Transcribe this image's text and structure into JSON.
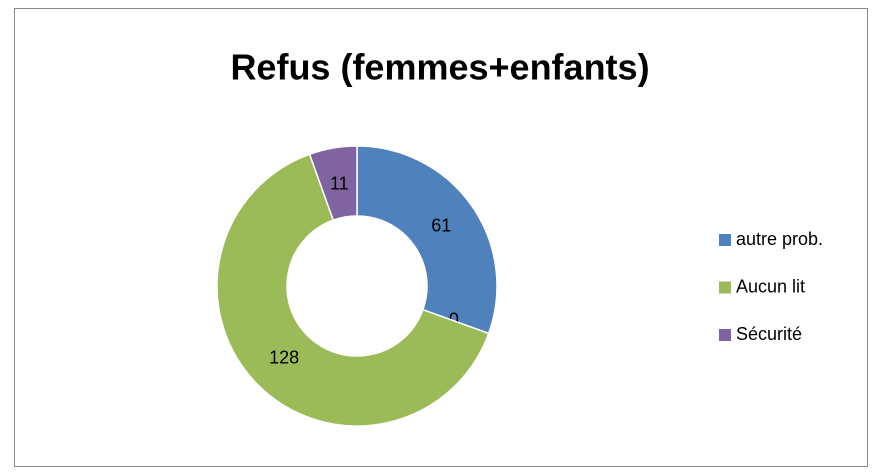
{
  "chart_data": {
    "type": "donut",
    "title": "Refus (femmes+enfants)",
    "categories": [
      "autre prob.",
      null,
      "Aucun lit",
      "Sécurité"
    ],
    "values": [
      61,
      0,
      128,
      11
    ],
    "colors": [
      "#4f81bd",
      "#c0504d",
      "#9bbb59",
      "#8064a2"
    ],
    "legend": "right"
  }
}
